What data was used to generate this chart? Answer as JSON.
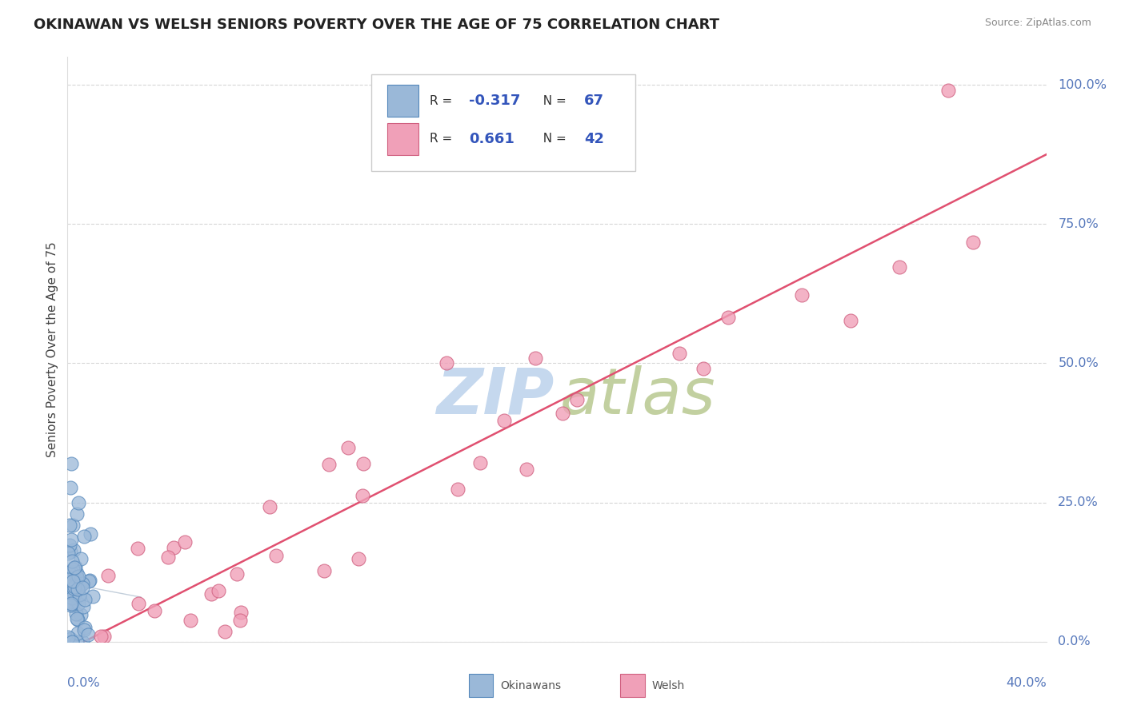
{
  "title": "OKINAWAN VS WELSH SENIORS POVERTY OVER THE AGE OF 75 CORRELATION CHART",
  "source": "Source: ZipAtlas.com",
  "ylabel": "Seniors Poverty Over the Age of 75",
  "ytick_labels": [
    "0.0%",
    "25.0%",
    "50.0%",
    "75.0%",
    "100.0%"
  ],
  "ytick_values": [
    0.0,
    0.25,
    0.5,
    0.75,
    1.0
  ],
  "xlim": [
    0.0,
    0.4
  ],
  "ylim": [
    0.0,
    1.05
  ],
  "okinawan_color": "#9ab8d8",
  "okinawan_edge": "#5588bb",
  "welsh_color": "#f0a0b8",
  "welsh_edge": "#d06080",
  "welsh_line_color": "#e05070",
  "okinawan_line_color": "#aabbcc",
  "background_color": "#ffffff",
  "grid_color": "#cccccc",
  "axis_label_color": "#5577bb",
  "title_color": "#222222",
  "source_color": "#888888",
  "legend_text_color": "#333333",
  "legend_R_color": "#3355bb",
  "watermark_zip_color": "#c5d8ee",
  "watermark_atlas_color": "#b8c890",
  "welsh_line_x": [
    0.0,
    0.4
  ],
  "welsh_line_y": [
    -0.015,
    0.875
  ],
  "okinawan_line_x": [
    0.0,
    0.03
  ],
  "okinawan_line_y": [
    0.105,
    0.08
  ]
}
